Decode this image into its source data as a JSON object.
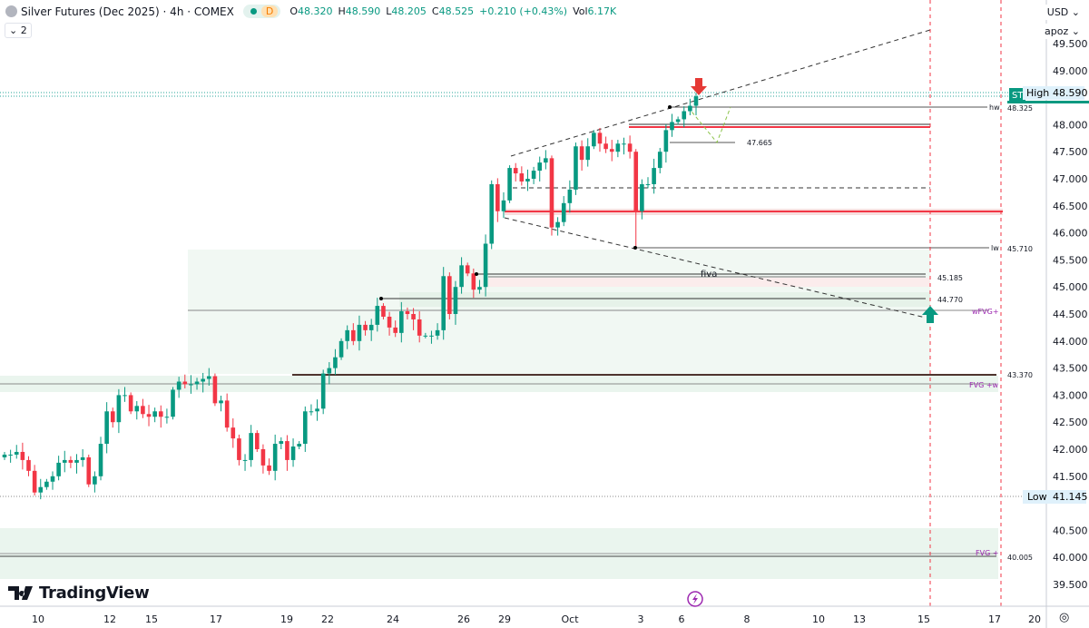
{
  "header": {
    "title": "Silver Futures (Dec 2025) · 4h · COMEX",
    "badge": "D",
    "open_label": "O",
    "open": "48.320",
    "high_label": "H",
    "high": "48.590",
    "low_label": "L",
    "low": "48.205",
    "close_label": "C",
    "close": "48.525",
    "change": "+0.210 (+0.43%)",
    "vol_label": "Vol",
    "vol": "6.17K"
  },
  "indicators_toggle": "2",
  "axis_buttons": {
    "currency": "USD",
    "scale": "apoz"
  },
  "colors": {
    "up": "#089981",
    "down": "#f23645",
    "zone": "#eef7f1",
    "purple": "#9c27b0"
  },
  "price_axis": {
    "ticks": [
      "49.500",
      "49.000",
      "48.000",
      "47.500",
      "47.000",
      "46.500",
      "46.000",
      "45.500",
      "45.000",
      "44.500",
      "44.000",
      "43.500",
      "43.000",
      "42.500",
      "42.000",
      "41.500",
      "40.500",
      "40.000",
      "39.500"
    ]
  },
  "time_axis": {
    "ticks": [
      "10",
      "12",
      "15",
      "17",
      "19",
      "22",
      "24",
      "26",
      "29",
      "Oct",
      "3",
      "6",
      "8",
      "10",
      "13",
      "15",
      "17",
      "20"
    ]
  },
  "price_labels": {
    "high_label": "High",
    "high_value": "48.590",
    "st": "ST",
    "low_label": "Low",
    "low_value": "41.145"
  },
  "levels": {
    "hw_label": "hw",
    "hw": "48.325",
    "mid": "47.665",
    "lw_label": "lw",
    "lw": "45.710",
    "fiva_label": "fiva",
    "fiva": "45.185",
    "l44": "44.770",
    "wfvg": "wFVG+",
    "l43": "43.370",
    "fvgw": "FVG +w",
    "fvg": "FVG +",
    "l40": "40.005"
  },
  "logo": "TradingView",
  "candles_close": [
    41.9,
    41.9,
    41.95,
    41.8,
    41.6,
    41.2,
    41.3,
    41.4,
    41.5,
    41.75,
    41.8,
    41.75,
    41.8,
    41.85,
    41.35,
    41.5,
    42.1,
    42.7,
    42.5,
    43.0,
    43.0,
    42.7,
    42.8,
    42.65,
    42.6,
    42.7,
    42.6,
    42.6,
    43.1,
    43.25,
    43.2,
    43.2,
    43.25,
    43.3,
    43.35,
    42.85,
    42.9,
    42.4,
    42.2,
    41.8,
    41.8,
    42.3,
    42.0,
    41.7,
    41.6,
    42.1,
    42.15,
    41.8,
    42.05,
    42.1,
    42.7,
    42.7,
    42.75,
    43.4,
    43.5,
    43.7,
    44.0,
    44.2,
    44.0,
    44.3,
    44.2,
    44.3,
    44.65,
    44.45,
    44.25,
    44.15,
    44.55,
    44.5,
    44.4,
    44.1,
    44.1,
    44.1,
    44.2,
    45.2,
    44.5,
    45.0,
    45.4,
    45.25,
    44.95,
    45.0,
    45.8,
    46.9,
    46.4,
    46.6,
    47.2,
    47.1,
    46.95,
    47.0,
    47.15,
    47.3,
    47.38,
    46.1,
    46.2,
    46.55,
    46.8,
    47.6,
    47.35,
    47.6,
    47.85,
    47.65,
    47.55,
    47.5,
    47.65,
    47.65,
    47.5,
    46.4,
    46.9,
    46.9,
    47.2,
    47.5,
    47.9,
    48.05,
    48.1,
    48.25,
    48.35,
    48.525
  ]
}
